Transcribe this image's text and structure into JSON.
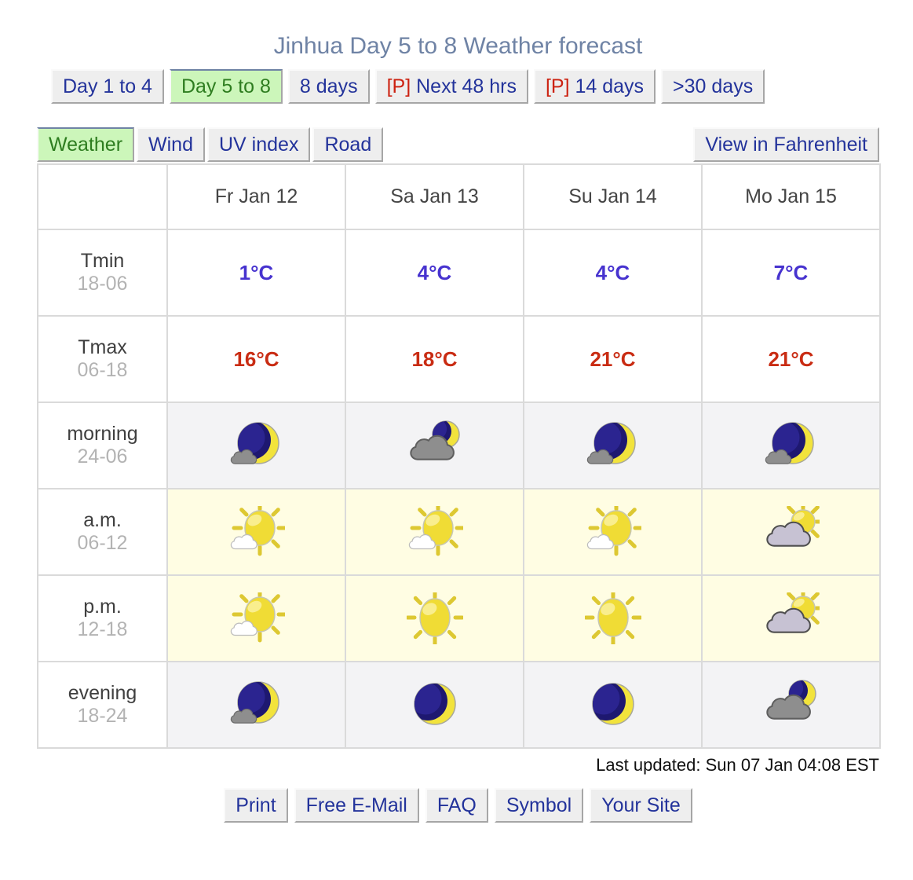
{
  "title": "Jinhua Day 5 to 8 Weather forecast",
  "nav_tabs": [
    {
      "label": "Day 1 to 4",
      "prefix": "",
      "active": false
    },
    {
      "label": "Day 5 to 8",
      "prefix": "",
      "active": true
    },
    {
      "label": "8 days",
      "prefix": "",
      "active": false
    },
    {
      "label": "Next 48 hrs",
      "prefix": "[P]",
      "active": false
    },
    {
      "label": "14 days",
      "prefix": "[P]",
      "active": false
    },
    {
      "label": ">30 days",
      "prefix": "",
      "active": false
    }
  ],
  "view_tabs": [
    {
      "label": "Weather",
      "active": true
    },
    {
      "label": "Wind",
      "active": false
    },
    {
      "label": "UV index",
      "active": false
    },
    {
      "label": "Road",
      "active": false
    }
  ],
  "fahrenheit_button": "View in Fahrenheit",
  "table": {
    "day_headers": [
      "Fr Jan 12",
      "Sa Jan 13",
      "Su Jan 14",
      "Mo Jan 15"
    ],
    "rows": [
      {
        "label": "Tmin",
        "time": "18-06",
        "type": "temp-min",
        "values": [
          "1°C",
          "4°C",
          "4°C",
          "7°C"
        ]
      },
      {
        "label": "Tmax",
        "time": "06-18",
        "type": "temp-max",
        "values": [
          "16°C",
          "18°C",
          "21°C",
          "21°C"
        ]
      },
      {
        "label": "morning",
        "time": "24-06",
        "type": "icons",
        "period": "night",
        "values": [
          "moon-cloud-icon",
          "cloud-moon-icon",
          "moon-cloud-icon",
          "moon-cloud-icon"
        ]
      },
      {
        "label": "a.m.",
        "time": "06-12",
        "type": "icons",
        "period": "day",
        "values": [
          "sun-cloud-icon",
          "sun-cloud-icon",
          "sun-cloud-icon",
          "cloud-sun-icon"
        ]
      },
      {
        "label": "p.m.",
        "time": "12-18",
        "type": "icons",
        "period": "day",
        "values": [
          "sun-cloud-icon",
          "sun-icon",
          "sun-icon",
          "cloud-sun-icon"
        ]
      },
      {
        "label": "evening",
        "time": "18-24",
        "type": "icons",
        "period": "night",
        "values": [
          "moon-cloud-icon",
          "moon-icon",
          "moon-icon",
          "cloud-moon-icon"
        ]
      }
    ]
  },
  "footer": {
    "last_updated": "Last updated: Sun 07 Jan 04:08 EST",
    "links": [
      "Print",
      "Free E-Mail",
      "FAQ",
      "Symbol",
      "Your Site"
    ]
  },
  "colors": {
    "title": "#6f83a5",
    "link_blue": "#23339b",
    "p_flag_red": "#cc2211",
    "active_tab_bg": "#ccf6ba",
    "active_tab_text": "#2e7d20",
    "temp_min_blue": "#4733cf",
    "temp_max_red": "#c92c13",
    "night_cell_bg": "#f3f3f5",
    "day_cell_bg": "#fffde3",
    "table_border": "#dadada",
    "button_bg": "#eeeeee"
  }
}
